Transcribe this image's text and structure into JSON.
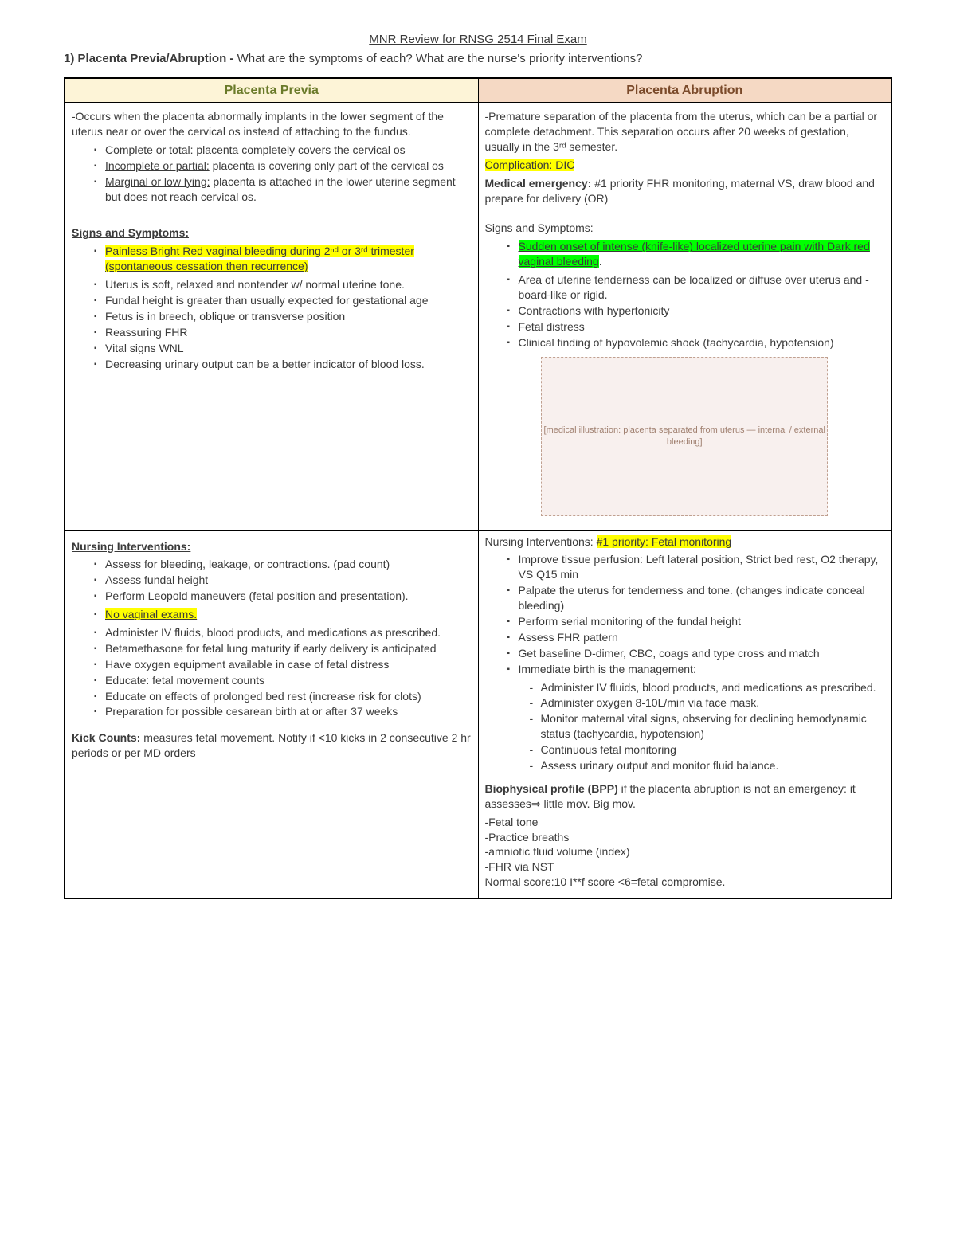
{
  "doc_title": "MNR Review for RNSG 2514 Final Exam",
  "question_num": "1)",
  "question_bold": "Placenta Previa/Abruption -",
  "question_rest": " What are the symptoms of each? What are the nurse's priority interventions?",
  "headers": {
    "left": "Placenta Previa",
    "right": "Placenta Abruption"
  },
  "previa": {
    "desc_intro": "-Occurs when the placenta abnormally implants in the lower segment of the uterus near or over the cervical os instead of attaching to the fundus.",
    "types": [
      {
        "label": "Complete or total:",
        "text": " placenta completely covers the cervical os"
      },
      {
        "label": "Incomplete or partial:",
        "text": " placenta is covering only part of the cervical os"
      },
      {
        "label": "Marginal or low lying:",
        "text": " placenta is attached in the lower uterine segment but does not reach cervical os."
      }
    ],
    "ss_heading": "Signs and Symptoms:",
    "ss_hl": "Painless Bright Red vaginal bleeding during 2ⁿᵈ or 3ʳᵈ trimester (spontaneous cessation then recurrence)",
    "ss_items": [
      "Uterus is soft, relaxed and nontender w/ normal uterine tone.",
      "Fundal height is greater than usually expected for gestational age",
      "Fetus is in breech, oblique or transverse position",
      "Reassuring FHR",
      "Vital signs WNL",
      "Decreasing urinary output can be a better indicator of blood loss."
    ],
    "ni_heading": "Nursing Interventions:",
    "ni_items_pre": [
      "Assess for bleeding, leakage, or contractions. (pad count)",
      "Assess fundal height",
      "Perform Leopold maneuvers (fetal position and presentation)."
    ],
    "ni_hl": "No vaginal exams.",
    "ni_items_post": [
      "Administer IV fluids, blood products, and medications as prescribed.",
      "Betamethasone for fetal lung maturity if early delivery is anticipated",
      "Have oxygen equipment available in case of fetal distress",
      "Educate: fetal movement counts",
      "Educate on effects of prolonged bed rest (increase risk for clots)",
      "Preparation for possible cesarean birth at or after 37 weeks"
    ],
    "kick_label": "Kick Counts:",
    "kick_text": " measures fetal movement. Notify if <10 kicks in 2 consecutive 2 hr periods or per MD orders"
  },
  "abruption": {
    "desc_intro": "-Premature separation of the placenta from the uterus, which can be a partial or complete detachment. This separation occurs after 20 weeks of gestation, usually in the 3ʳᵈ semester.",
    "complication": "Complication: DIC",
    "med_emerg_label": "Medical emergency:",
    "med_emerg_text": " #1 priority FHR monitoring, maternal VS, draw blood and prepare for delivery (OR)",
    "ss_heading": "Signs and Symptoms:",
    "ss_hl": "Sudden onset of intense (knife-like) localized uterine pain with Dark red vaginal bleeding",
    "ss_items": [
      "Area of uterine tenderness can be localized or diffuse over uterus and -board-like or rigid.",
      "Contractions with hypertonicity",
      "Fetal distress",
      "Clinical finding of hypovolemic shock (tachycardia, hypotension)"
    ],
    "img_note": "[medical illustration: placenta separated from uterus — internal / external bleeding]",
    "ni_heading_pre": "Nursing Interventions: ",
    "ni_heading_hl": "#1 priority: Fetal monitoring",
    "ni_items": [
      "Improve tissue perfusion: Left lateral position, Strict bed rest, O2 therapy, VS Q15 min",
      "Palpate the uterus for tenderness and tone. (changes indicate conceal bleeding)",
      "Perform serial monitoring of the fundal height",
      "Assess FHR pattern",
      "Get baseline D-dimer, CBC, coags and type cross and match",
      "Immediate birth is the management:"
    ],
    "ni_sub": [
      "Administer IV fluids, blood products, and medications as prescribed.",
      "Administer oxygen 8-10L/min via face mask.",
      "Monitor maternal vital signs, observing for declining hemodynamic status (tachycardia, hypotension)",
      "Continuous fetal monitoring",
      "Assess urinary output and monitor fluid balance."
    ],
    "bpp_label": "Biophysical profile (BPP)",
    "bpp_text": " if the placenta abruption is not an emergency: it assesses⇒ little mov. Big mov.",
    "bpp_lines": [
      "-Fetal tone",
      "-Practice breaths",
      "-amniotic fluid volume (index)",
      "-FHR via NST",
      "Normal score:10 I**f score <6=fetal compromise."
    ]
  }
}
